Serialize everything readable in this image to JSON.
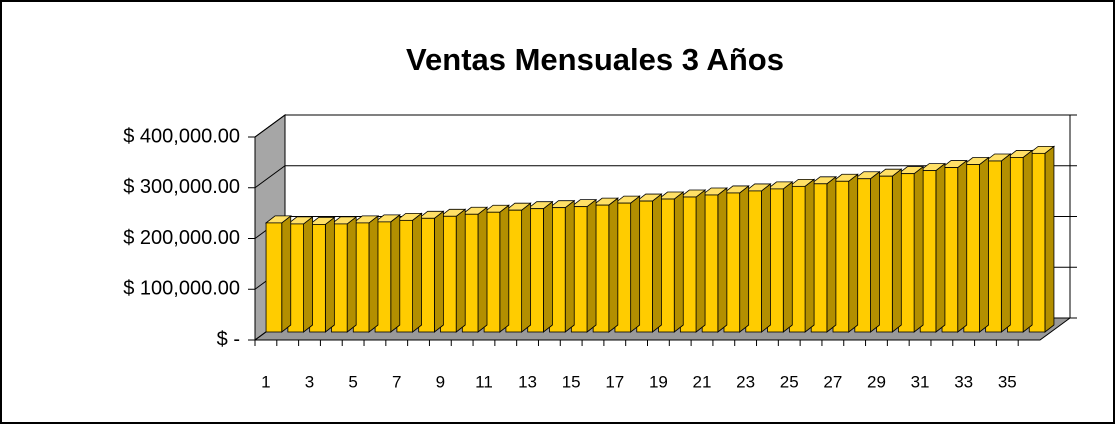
{
  "chart_data": {
    "type": "bar3d",
    "title": "Ventas Mensuales 3 Años",
    "categories": [
      "1",
      null,
      "3",
      null,
      "5",
      null,
      "7",
      null,
      "9",
      null,
      "11",
      null,
      "13",
      null,
      "15",
      null,
      "17",
      null,
      "19",
      null,
      "21",
      null,
      "23",
      null,
      "25",
      null,
      "27",
      null,
      "29",
      null,
      "31",
      null,
      "33",
      null,
      "35",
      null
    ],
    "values": [
      215000,
      213000,
      212000,
      213000,
      215000,
      217000,
      220000,
      224000,
      228000,
      232000,
      236000,
      240000,
      243000,
      245000,
      247000,
      250000,
      254000,
      258000,
      262000,
      266000,
      270000,
      274000,
      278000,
      282000,
      287000,
      292000,
      297000,
      302000,
      307000,
      312000,
      318000,
      324000,
      330000,
      337000,
      344000,
      352000
    ],
    "color": "#ffcc00",
    "ylim": [
      0,
      400000
    ],
    "yticks": [
      {
        "value": 0,
        "label": "$ -"
      },
      {
        "value": 100000,
        "label": "$ 100,000.00"
      },
      {
        "value": 200000,
        "label": "$ 200,000.00"
      },
      {
        "value": 300000,
        "label": "$ 300,000.00"
      },
      {
        "value": 400000,
        "label": "$ 400,000.00"
      }
    ],
    "grid": true
  }
}
